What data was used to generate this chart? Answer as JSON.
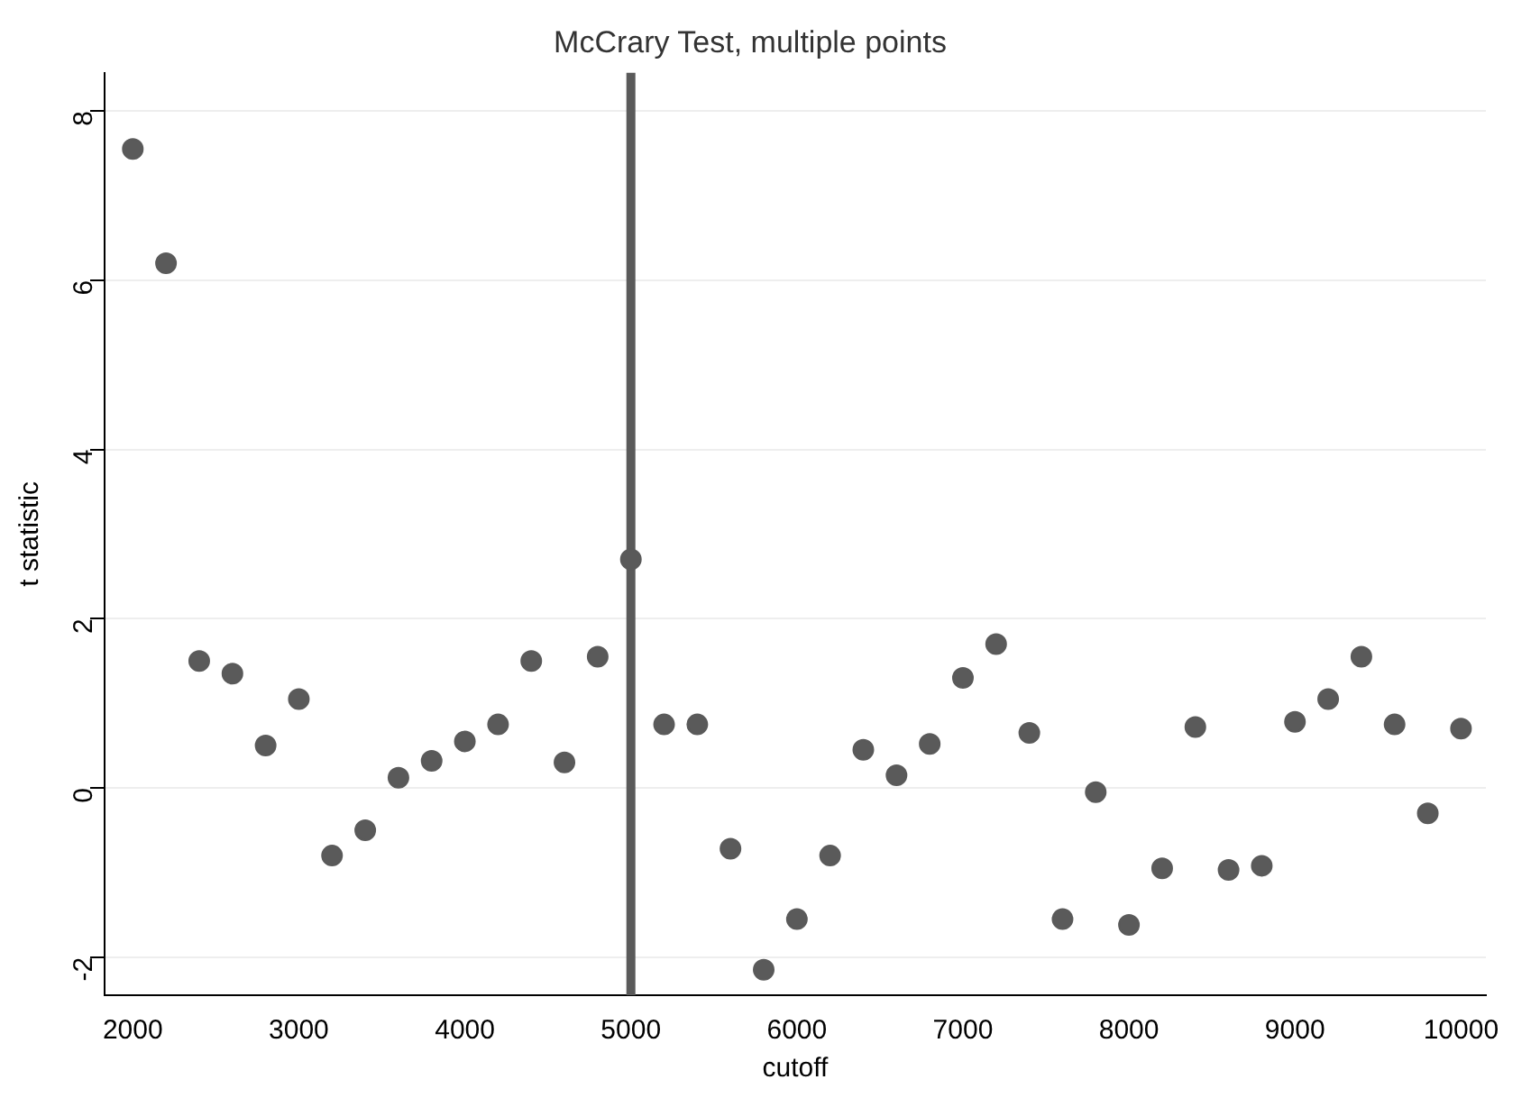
{
  "chart_data": {
    "type": "scatter",
    "title": "McCrary Test, multiple points",
    "xlabel": "cutoff",
    "ylabel": "t statistic",
    "x": [
      2000,
      2200,
      2400,
      2600,
      2800,
      3000,
      3200,
      3400,
      3600,
      3800,
      4000,
      4200,
      4400,
      4600,
      4800,
      5000,
      5200,
      5400,
      5600,
      5800,
      6000,
      6200,
      6400,
      6600,
      6800,
      7000,
      7200,
      7400,
      7600,
      7800,
      8000,
      8200,
      8400,
      8600,
      8800,
      9000,
      9200,
      9400,
      9600,
      9800,
      10000
    ],
    "series": [
      {
        "color": "#5a5a5a",
        "values": [
          7.55,
          6.2,
          1.5,
          1.35,
          0.5,
          1.05,
          -0.8,
          -0.5,
          0.12,
          0.32,
          0.55,
          0.75,
          1.5,
          0.3,
          1.55,
          2.7,
          0.75,
          0.75,
          -0.72,
          -2.15,
          -1.55,
          -0.8,
          0.45,
          0.15,
          0.52,
          1.3,
          1.7,
          0.65,
          -1.55,
          -0.05,
          -1.62,
          -0.95,
          0.72,
          -0.97,
          -0.92,
          0.78,
          1.05,
          1.55,
          0.75,
          -0.3,
          0.7
        ]
      }
    ],
    "xlim": [
      1830,
      10150
    ],
    "xticks": [
      2000,
      3000,
      4000,
      5000,
      6000,
      7000,
      8000,
      9000,
      10000
    ],
    "ylim": [
      -2.45,
      8.45
    ],
    "yticks": [
      -2,
      0,
      2,
      4,
      6,
      8
    ],
    "ref_lines": [
      {
        "axis": "x",
        "value": 5000,
        "color": "#5a5a5a"
      }
    ],
    "grid": "y",
    "legend": false,
    "marker": "circle"
  }
}
